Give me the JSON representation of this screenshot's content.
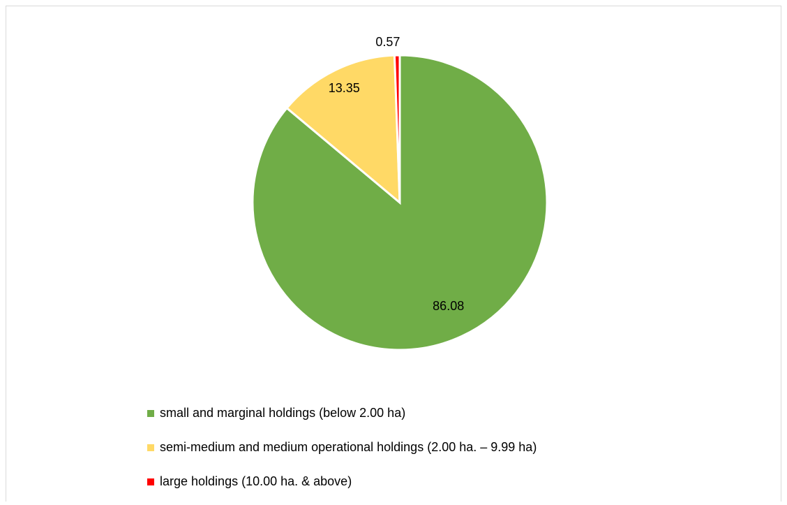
{
  "chart_data": {
    "type": "pie",
    "categories": [
      "small and marginal holdings (below 2.00 ha)",
      "semi-medium and medium operational holdings (2.00 ha. – 9.99 ha)",
      "large holdings (10.00 ha. & above)"
    ],
    "values": [
      86.08,
      13.35,
      0.57
    ],
    "colors": [
      "#70ad47",
      "#ffd966",
      "#ff0000"
    ],
    "legend": "bottom"
  }
}
